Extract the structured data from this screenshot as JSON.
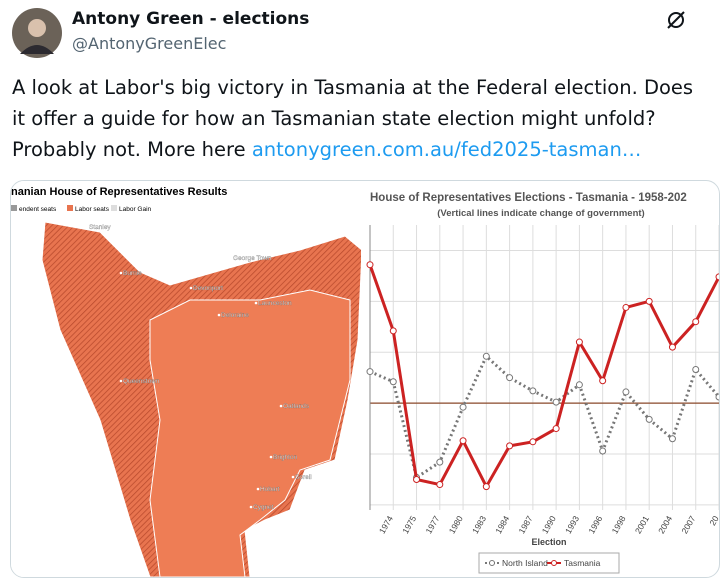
{
  "tweet": {
    "author": "Antony Green - elections",
    "handle": "@AntonyGreenElec",
    "text": "A look at Labor's big victory in Tasmania at the Federal election. Does it offer a guide for how an Tasmanian state election might unfold? Probably not. More here",
    "link": "antonygreen.com.au/fed2025-tasman…"
  },
  "map": {
    "title": "nanian House of Representatives Results",
    "legend": [
      "endent seats",
      "Labor seats",
      "Labor Gain"
    ],
    "places": [
      "Stanley",
      "Burnie",
      "Devonport",
      "George Town",
      "Launceston",
      "Deloraine",
      "Queenstown",
      "Oatlands",
      "Brighton",
      "Sorell",
      "Hobart",
      "Cygnet"
    ]
  },
  "chart_data": {
    "type": "line",
    "title": "House of Representatives Elections - Tasmania - 1958-202",
    "subtitle": "(Vertical lines indicate change of government)",
    "x_label": "Election",
    "categories": [
      null,
      "1974",
      "1975",
      "1977",
      "1980",
      "1983",
      "1984",
      "1987",
      "1990",
      "1993",
      "1996",
      "1998",
      "2001",
      "2004",
      "2007",
      "20"
    ],
    "ylim": [
      39.5,
      67.5
    ],
    "grid_y": [
      40,
      45,
      50,
      55,
      60,
      65
    ],
    "reference_line": 50,
    "series": [
      {
        "name": "North Island",
        "color": "#777777",
        "values": [
          53.1,
          52.1,
          42.7,
          44.2,
          49.6,
          54.6,
          52.5,
          51.2,
          50.1,
          51.8,
          45.3,
          51.1,
          48.4,
          46.5,
          53.3,
          50.6
        ]
      },
      {
        "name": "Tasmania",
        "color": "#cc2222",
        "values": [
          63.6,
          57.1,
          42.5,
          42.0,
          46.3,
          41.8,
          45.8,
          46.2,
          47.5,
          56.0,
          52.2,
          59.4,
          60.0,
          55.5,
          58.0,
          62.4
        ]
      }
    ]
  }
}
